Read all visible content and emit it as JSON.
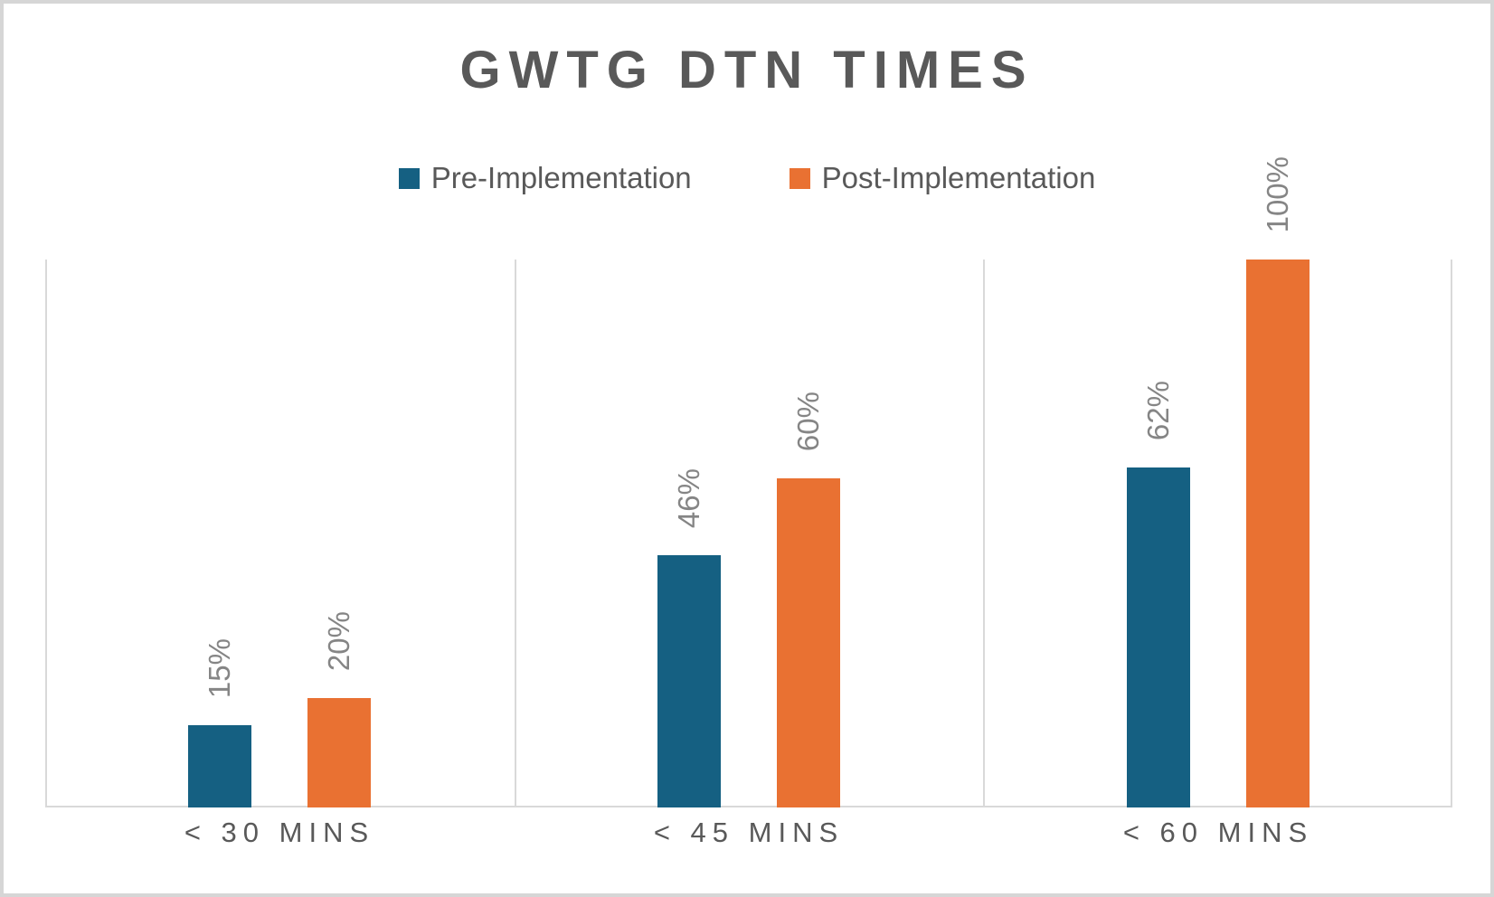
{
  "chart_data": {
    "type": "bar",
    "title": "GWTG DTN TIMES",
    "categories": [
      "< 30 MINS",
      "< 45 MINS",
      "< 60 MINS"
    ],
    "series": [
      {
        "name": "Pre-Implementation",
        "color": "#156082",
        "values": [
          15,
          46,
          62
        ]
      },
      {
        "name": "Post-Implementation",
        "color": "#E97132",
        "values": [
          20,
          60,
          100
        ]
      }
    ],
    "value_suffix": "%",
    "data_labels": [
      "15%",
      "20%",
      "46%",
      "60%",
      "62%",
      "100%"
    ],
    "ylim": [
      0,
      100
    ],
    "legend_position": "top",
    "grid": {
      "vertical_category_separators": true,
      "horizontal": false,
      "color": "#d9d9d9"
    }
  },
  "styles": {
    "title_color": "#595959",
    "legend_text_color": "#595959",
    "data_label_color": "#858585",
    "axis_label_color": "#595959",
    "frame_border_color": "#d6d6d6",
    "background_color": "#ffffff"
  }
}
